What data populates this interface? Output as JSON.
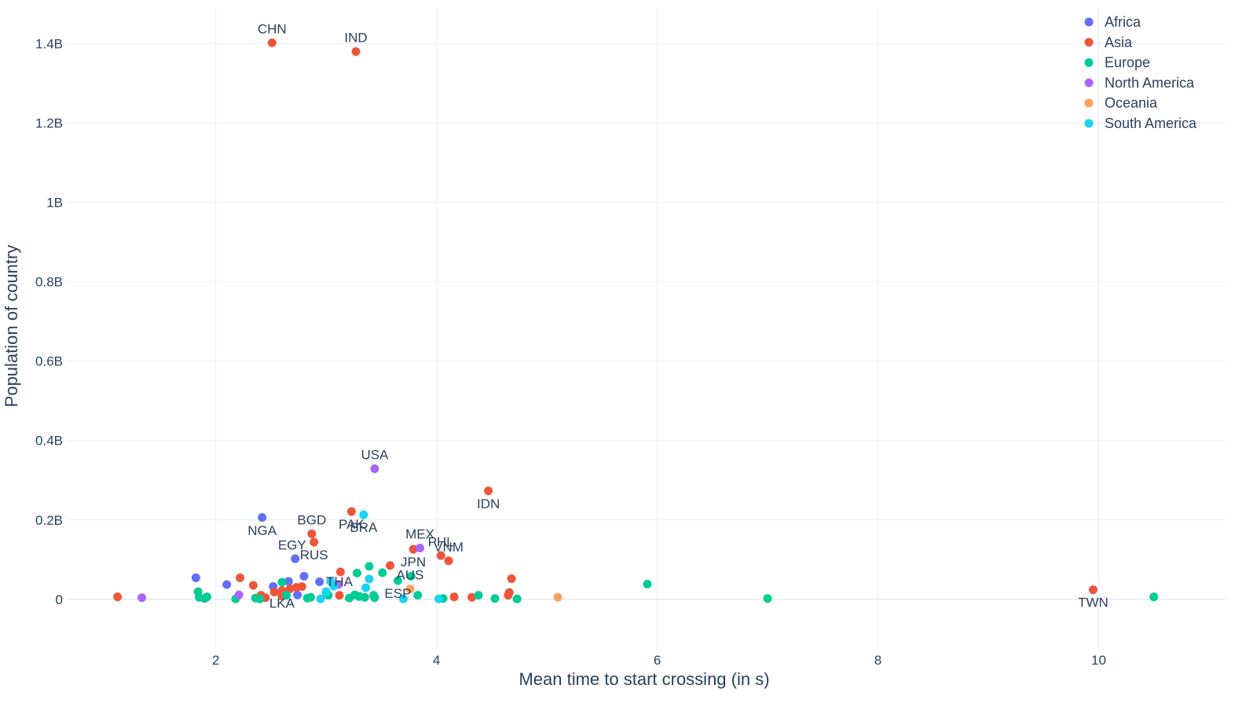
{
  "chart_data": {
    "type": "scatter",
    "title": "",
    "xlabel": "Mean time to start crossing (in s)",
    "ylabel": "Population of country",
    "xlim": [
      0.65,
      11.15
    ],
    "ylim": [
      -0.125,
      1.49
    ],
    "x_ticks": [
      2,
      4,
      6,
      8,
      10
    ],
    "x_tick_labels": [
      "2",
      "4",
      "6",
      "8",
      "10"
    ],
    "y_ticks": [
      0,
      0.2,
      0.4,
      0.6,
      0.8,
      1.0,
      1.2,
      1.4
    ],
    "y_tick_labels": [
      "0",
      "0.2B",
      "0.4B",
      "0.6B",
      "0.8B",
      "1B",
      "1.2B",
      "1.4B"
    ],
    "y_unit": "billions",
    "grid": true,
    "legend_position": "top-right",
    "series": [
      {
        "name": "Africa",
        "color": "#636efa",
        "points": [
          {
            "x": 2.42,
            "y": 0.206,
            "label": "NGA",
            "label_pos": "below"
          },
          {
            "x": 2.72,
            "y": 0.102,
            "label": "EGY",
            "label_pos": "above-left"
          },
          {
            "x": 1.82,
            "y": 0.054
          },
          {
            "x": 2.1,
            "y": 0.037
          },
          {
            "x": 2.52,
            "y": 0.032
          },
          {
            "x": 2.66,
            "y": 0.045
          },
          {
            "x": 2.8,
            "y": 0.058
          },
          {
            "x": 2.94,
            "y": 0.044
          },
          {
            "x": 2.74,
            "y": 0.011
          },
          {
            "x": 3.0,
            "y": 0.017
          }
        ]
      },
      {
        "name": "Asia",
        "color": "#ef553b",
        "points": [
          {
            "x": 2.51,
            "y": 1.402,
            "label": "CHN",
            "label_pos": "above"
          },
          {
            "x": 3.27,
            "y": 1.38,
            "label": "IND",
            "label_pos": "above"
          },
          {
            "x": 4.47,
            "y": 0.273,
            "label": "IDN",
            "label_pos": "below"
          },
          {
            "x": 3.23,
            "y": 0.221,
            "label": "PAK",
            "label_pos": "below"
          },
          {
            "x": 2.87,
            "y": 0.165,
            "label": "BGD",
            "label_pos": "above"
          },
          {
            "x": 2.89,
            "y": 0.144,
            "label": "RUS",
            "label_pos": "below"
          },
          {
            "x": 4.04,
            "y": 0.11,
            "label": "PHL",
            "label_pos": "above"
          },
          {
            "x": 4.11,
            "y": 0.097,
            "label": "VNM",
            "label_pos": "above"
          },
          {
            "x": 3.79,
            "y": 0.126,
            "label": "JPN",
            "label_pos": "below"
          },
          {
            "x": 3.12,
            "y": 0.01,
            "label": "THA",
            "label_pos": "above"
          },
          {
            "x": 2.6,
            "y": 0.022,
            "label": "LKA",
            "label_pos": "below"
          },
          {
            "x": 9.95,
            "y": 0.024,
            "label": "TWN",
            "label_pos": "below"
          },
          {
            "x": 1.11,
            "y": 0.006
          },
          {
            "x": 2.22,
            "y": 0.054
          },
          {
            "x": 2.34,
            "y": 0.035
          },
          {
            "x": 2.41,
            "y": 0.01
          },
          {
            "x": 2.45,
            "y": 0.004
          },
          {
            "x": 2.53,
            "y": 0.018
          },
          {
            "x": 2.6,
            "y": 0.008
          },
          {
            "x": 2.67,
            "y": 0.026
          },
          {
            "x": 2.73,
            "y": 0.03
          },
          {
            "x": 2.78,
            "y": 0.032
          },
          {
            "x": 3.13,
            "y": 0.069
          },
          {
            "x": 3.58,
            "y": 0.085
          },
          {
            "x": 4.16,
            "y": 0.006
          },
          {
            "x": 4.32,
            "y": 0.005
          },
          {
            "x": 4.65,
            "y": 0.01
          },
          {
            "x": 4.66,
            "y": 0.017
          },
          {
            "x": 4.68,
            "y": 0.052
          }
        ]
      },
      {
        "name": "Europe",
        "color": "#00cc96",
        "points": [
          {
            "x": 3.65,
            "y": 0.047,
            "label": "ESP",
            "label_pos": "below"
          },
          {
            "x": 1.84,
            "y": 0.019
          },
          {
            "x": 1.85,
            "y": 0.005
          },
          {
            "x": 1.9,
            "y": 0.002
          },
          {
            "x": 1.92,
            "y": 0.006
          },
          {
            "x": 2.18,
            "y": 0.001
          },
          {
            "x": 2.36,
            "y": 0.003
          },
          {
            "x": 2.4,
            "y": 0.001
          },
          {
            "x": 2.6,
            "y": 0.043
          },
          {
            "x": 2.64,
            "y": 0.01
          },
          {
            "x": 2.83,
            "y": 0.003
          },
          {
            "x": 2.86,
            "y": 0.005
          },
          {
            "x": 3.02,
            "y": 0.01
          },
          {
            "x": 3.21,
            "y": 0.003
          },
          {
            "x": 3.26,
            "y": 0.011
          },
          {
            "x": 3.28,
            "y": 0.066
          },
          {
            "x": 3.3,
            "y": 0.007
          },
          {
            "x": 3.35,
            "y": 0.005
          },
          {
            "x": 3.39,
            "y": 0.083
          },
          {
            "x": 3.43,
            "y": 0.01
          },
          {
            "x": 3.44,
            "y": 0.004
          },
          {
            "x": 3.51,
            "y": 0.067
          },
          {
            "x": 3.77,
            "y": 0.058
          },
          {
            "x": 3.83,
            "y": 0.01
          },
          {
            "x": 4.06,
            "y": 0.002
          },
          {
            "x": 4.38,
            "y": 0.01
          },
          {
            "x": 4.53,
            "y": 0.002
          },
          {
            "x": 4.73,
            "y": 0.001
          },
          {
            "x": 5.91,
            "y": 0.038
          },
          {
            "x": 7.0,
            "y": 0.002
          },
          {
            "x": 10.5,
            "y": 0.006
          }
        ]
      },
      {
        "name": "North America",
        "color": "#ab63fa",
        "points": [
          {
            "x": 3.44,
            "y": 0.329,
            "label": "USA",
            "label_pos": "above"
          },
          {
            "x": 3.85,
            "y": 0.129,
            "label": "MEX",
            "label_pos": "above"
          },
          {
            "x": 1.33,
            "y": 0.004
          },
          {
            "x": 2.21,
            "y": 0.011
          },
          {
            "x": 3.11,
            "y": 0.037
          }
        ]
      },
      {
        "name": "Oceania",
        "color": "#ffa15a",
        "points": [
          {
            "x": 3.76,
            "y": 0.026,
            "label": "AUS",
            "label_pos": "above"
          },
          {
            "x": 5.1,
            "y": 0.005
          }
        ]
      },
      {
        "name": "South America",
        "color": "#19d3f3",
        "points": [
          {
            "x": 3.34,
            "y": 0.213,
            "label": "BRA",
            "label_pos": "below"
          },
          {
            "x": 2.95,
            "y": 0.001
          },
          {
            "x": 3.0,
            "y": 0.019
          },
          {
            "x": 3.04,
            "y": 0.045
          },
          {
            "x": 3.07,
            "y": 0.033
          },
          {
            "x": 3.36,
            "y": 0.029
          },
          {
            "x": 3.39,
            "y": 0.051
          },
          {
            "x": 3.7,
            "y": 0.001
          },
          {
            "x": 4.02,
            "y": 0.001
          }
        ]
      }
    ]
  }
}
